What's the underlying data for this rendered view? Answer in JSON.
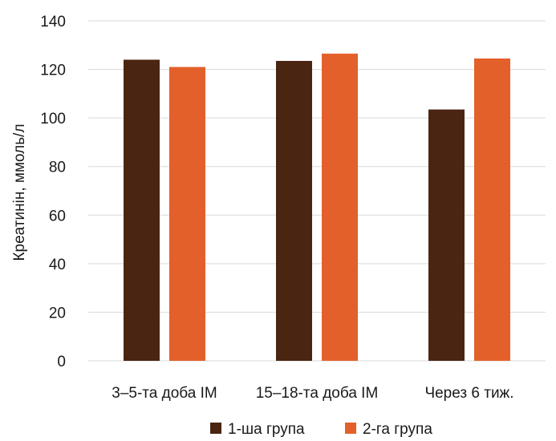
{
  "chart_data": {
    "type": "bar",
    "title": "",
    "xlabel": "",
    "ylabel": "Креатинін, ммоль/л",
    "categories": [
      "3–5-та доба ІМ",
      "15–18-та доба ІМ",
      "Через 6 тиж."
    ],
    "series": [
      {
        "name": "1-ша група",
        "values": [
          124,
          123.5,
          103.5
        ],
        "color": "#4a2511"
      },
      {
        "name": "2-га група",
        "values": [
          121,
          126.5,
          124.5
        ],
        "color": "#e3602a"
      }
    ],
    "ylim": [
      0,
      140
    ],
    "yticks": [
      0,
      20,
      40,
      60,
      80,
      100,
      120,
      140
    ],
    "grid": true,
    "legend_position": "bottom",
    "gridline_color": "#d9d9d9"
  }
}
